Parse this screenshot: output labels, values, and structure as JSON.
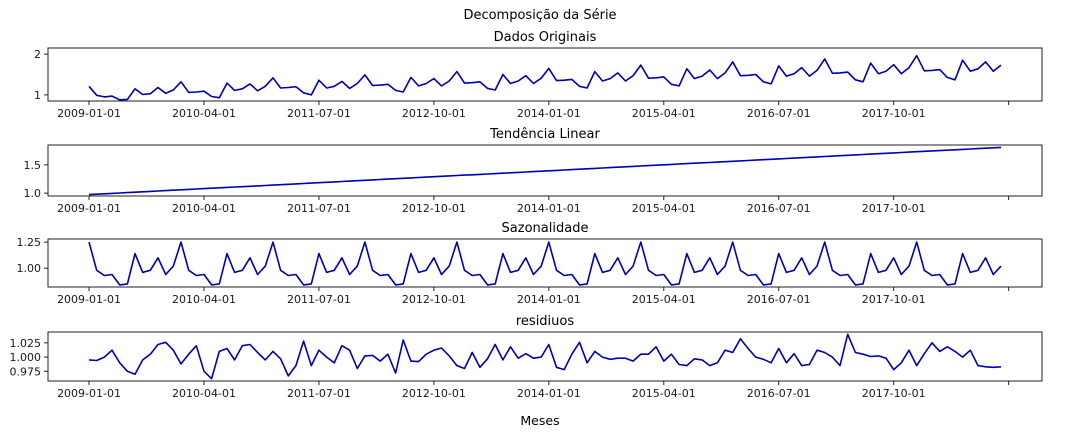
{
  "chart_data": {
    "suptitle": "Decomposição da Série",
    "xlabel": "Meses",
    "type": "line",
    "x_start": "2009-01-01",
    "x_end": "2018-12-01",
    "x_ticks": [
      "2009-01-01",
      "2010-04-01",
      "2011-07-01",
      "2012-10-01",
      "2014-01-01",
      "2015-04-01",
      "2016-07-01",
      "2017-10-01",
      "2019-01-01"
    ],
    "x_tick_labels": [
      "2009-01-01",
      "2010-04-01",
      "2011-07-01",
      "2012-10-01",
      "2014-01-01",
      "2015-04-01",
      "2016-07-01",
      "2017-10-01",
      ""
    ],
    "panels": [
      {
        "title": "Dados Originais",
        "ylim": [
          0.85,
          2.15
        ],
        "yticks": [
          1,
          2
        ],
        "ytick_labels": [
          "1",
          "2"
        ],
        "values": [
          1.21,
          0.99,
          0.95,
          0.97,
          0.88,
          0.89,
          1.15,
          1.01,
          1.03,
          1.18,
          1.04,
          1.12,
          1.32,
          1.06,
          1.07,
          1.09,
          0.96,
          0.93,
          1.29,
          1.11,
          1.15,
          1.27,
          1.1,
          1.21,
          1.42,
          1.17,
          1.18,
          1.2,
          1.05,
          1.0,
          1.36,
          1.17,
          1.21,
          1.33,
          1.16,
          1.28,
          1.49,
          1.23,
          1.24,
          1.26,
          1.11,
          1.07,
          1.43,
          1.22,
          1.28,
          1.4,
          1.22,
          1.34,
          1.57,
          1.29,
          1.3,
          1.32,
          1.16,
          1.12,
          1.5,
          1.28,
          1.34,
          1.47,
          1.28,
          1.41,
          1.65,
          1.35,
          1.36,
          1.38,
          1.21,
          1.17,
          1.57,
          1.34,
          1.4,
          1.54,
          1.34,
          1.47,
          1.73,
          1.41,
          1.42,
          1.44,
          1.26,
          1.22,
          1.64,
          1.4,
          1.46,
          1.61,
          1.4,
          1.54,
          1.81,
          1.47,
          1.48,
          1.5,
          1.32,
          1.27,
          1.71,
          1.46,
          1.52,
          1.67,
          1.46,
          1.6,
          1.88,
          1.53,
          1.54,
          1.56,
          1.37,
          1.32,
          1.78,
          1.52,
          1.58,
          1.74,
          1.52,
          1.67,
          1.96,
          1.59,
          1.6,
          1.62,
          1.43,
          1.37,
          1.85,
          1.58,
          1.64,
          1.81,
          1.58,
          1.73
        ]
      },
      {
        "title": "Tendência Linear",
        "ylim": [
          0.95,
          1.85
        ],
        "yticks": [
          1.0,
          1.5
        ],
        "ytick_labels": [
          "1.0",
          "1.5"
        ],
        "values": [
          0.975,
          0.982,
          0.989,
          0.996,
          1.003,
          1.01,
          1.017,
          1.024,
          1.031,
          1.038,
          1.045,
          1.052,
          1.059,
          1.066,
          1.073,
          1.08,
          1.087,
          1.094,
          1.101,
          1.108,
          1.115,
          1.122,
          1.129,
          1.136,
          1.143,
          1.15,
          1.157,
          1.164,
          1.171,
          1.178,
          1.185,
          1.192,
          1.199,
          1.206,
          1.213,
          1.22,
          1.227,
          1.234,
          1.241,
          1.248,
          1.255,
          1.262,
          1.269,
          1.276,
          1.283,
          1.29,
          1.297,
          1.304,
          1.311,
          1.318,
          1.325,
          1.332,
          1.339,
          1.346,
          1.353,
          1.36,
          1.367,
          1.374,
          1.381,
          1.388,
          1.395,
          1.402,
          1.409,
          1.416,
          1.423,
          1.43,
          1.437,
          1.444,
          1.451,
          1.458,
          1.465,
          1.472,
          1.479,
          1.486,
          1.493,
          1.5,
          1.507,
          1.514,
          1.521,
          1.528,
          1.535,
          1.542,
          1.549,
          1.556,
          1.563,
          1.57,
          1.577,
          1.584,
          1.591,
          1.598,
          1.605,
          1.612,
          1.619,
          1.626,
          1.633,
          1.64,
          1.647,
          1.654,
          1.661,
          1.668,
          1.675,
          1.682,
          1.689,
          1.696,
          1.703,
          1.71,
          1.717,
          1.724,
          1.731,
          1.738,
          1.745,
          1.752,
          1.759,
          1.766,
          1.773,
          1.78,
          1.787,
          1.794,
          1.801,
          1.808
        ]
      },
      {
        "title": "Sazonalidade",
        "ylim": [
          0.82,
          1.28
        ],
        "yticks": [
          1.0,
          1.25
        ],
        "ytick_labels": [
          "1.00",
          "1.25"
        ],
        "values": [
          1.25,
          0.98,
          0.93,
          0.94,
          0.84,
          0.85,
          1.14,
          0.96,
          0.98,
          1.1,
          0.94,
          1.02,
          1.25,
          0.98,
          0.93,
          0.94,
          0.84,
          0.85,
          1.14,
          0.96,
          0.98,
          1.1,
          0.94,
          1.02,
          1.25,
          0.98,
          0.93,
          0.94,
          0.84,
          0.85,
          1.14,
          0.96,
          0.98,
          1.1,
          0.94,
          1.02,
          1.25,
          0.98,
          0.93,
          0.94,
          0.84,
          0.85,
          1.14,
          0.96,
          0.98,
          1.1,
          0.94,
          1.02,
          1.25,
          0.98,
          0.93,
          0.94,
          0.84,
          0.85,
          1.14,
          0.96,
          0.98,
          1.1,
          0.94,
          1.02,
          1.25,
          0.98,
          0.93,
          0.94,
          0.84,
          0.85,
          1.14,
          0.96,
          0.98,
          1.1,
          0.94,
          1.02,
          1.25,
          0.98,
          0.93,
          0.94,
          0.84,
          0.85,
          1.14,
          0.96,
          0.98,
          1.1,
          0.94,
          1.02,
          1.25,
          0.98,
          0.93,
          0.94,
          0.84,
          0.85,
          1.14,
          0.96,
          0.98,
          1.1,
          0.94,
          1.02,
          1.25,
          0.98,
          0.93,
          0.94,
          0.84,
          0.85,
          1.14,
          0.96,
          0.98,
          1.1,
          0.94,
          1.02,
          1.25,
          0.98,
          0.93,
          0.94,
          0.84,
          0.85,
          1.14,
          0.96,
          0.98,
          1.1,
          0.94,
          1.02
        ]
      },
      {
        "title": "residiuos",
        "ylim": [
          0.958,
          1.044
        ],
        "yticks": [
          0.975,
          1.0,
          1.025
        ],
        "ytick_labels": [
          "0.975",
          "1.000",
          "1.025"
        ],
        "values": [
          0.995,
          0.994,
          1.0,
          1.012,
          0.99,
          0.975,
          0.97,
          0.995,
          1.005,
          1.022,
          1.026,
          1.012,
          0.988,
          1.005,
          1.02,
          0.975,
          0.962,
          1.01,
          1.015,
          0.995,
          1.02,
          1.022,
          1.008,
          0.995,
          1.01,
          0.997,
          0.967,
          0.985,
          1.028,
          0.985,
          1.012,
          1.0,
          0.99,
          1.02,
          1.012,
          0.98,
          1.002,
          1.003,
          0.993,
          1.005,
          0.972,
          1.03,
          0.993,
          0.992,
          1.005,
          1.012,
          1.016,
          1.002,
          0.985,
          0.98,
          1.008,
          0.982,
          0.997,
          1.022,
          0.995,
          1.018,
          0.998,
          1.006,
          0.998,
          1.0,
          1.022,
          0.982,
          0.978,
          1.005,
          1.026,
          0.99,
          1.01,
          1.0,
          0.996,
          0.998,
          0.998,
          0.993,
          1.005,
          1.005,
          1.018,
          0.993,
          1.005,
          0.987,
          0.985,
          0.997,
          0.995,
          0.985,
          0.99,
          1.012,
          1.008,
          1.032,
          1.015,
          1.0,
          0.996,
          0.99,
          1.015,
          0.99,
          1.006,
          0.985,
          0.987,
          1.012,
          1.008,
          1.0,
          0.985,
          1.04,
          1.008,
          1.005,
          1.001,
          1.002,
          0.998,
          0.978,
          0.99,
          1.012,
          0.985,
          1.006,
          1.025,
          1.01,
          1.018,
          1.01,
          1.0,
          1.012,
          0.985,
          0.983,
          0.982,
          0.983
        ]
      }
    ]
  }
}
